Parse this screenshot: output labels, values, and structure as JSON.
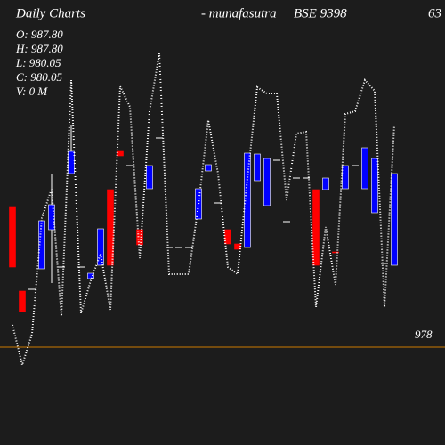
{
  "chart_data": {
    "type": "candlestick",
    "title": "Daily Charts",
    "source": "- munafasutra",
    "symbol": "BSE 9398",
    "corner_text": "63",
    "ohlc_labels": [
      "O: 987.80",
      "H: 987.80",
      "L: 980.05",
      "C: 980.05",
      "V: 0  M"
    ],
    "ylim": [
      972.5,
      997.5
    ],
    "up_color": "#0000ff",
    "down_color": "#ff0000",
    "level": 978,
    "level_color": "#cc7a00",
    "open": [
      985.85,
      981.15,
      981.25,
      982.4,
      984.6,
      982.5,
      987.75,
      982.5,
      981.85,
      982.6,
      986.85,
      989.0,
      988.2,
      984.6,
      986.9,
      989.75,
      983.6,
      983.6,
      983.6,
      985.2,
      987.9,
      986.1,
      984.6,
      983.8,
      983.6,
      987.35,
      985.95,
      988.5,
      985.05,
      987.5,
      987.5,
      986.85,
      986.85,
      983.35,
      986.9,
      988.2,
      986.9,
      985.55,
      982.7,
      982.6
    ],
    "high": [
      985.85,
      981.15,
      981.25,
      985.1,
      987.75,
      982.5,
      990.5,
      982.5,
      982.15,
      984.65,
      986.85,
      989.0,
      988.2,
      984.6,
      988.2,
      989.75,
      983.6,
      983.6,
      983.6,
      986.9,
      988.25,
      986.1,
      984.6,
      983.8,
      988.9,
      988.85,
      988.6,
      988.5,
      985.05,
      987.5,
      987.5,
      986.85,
      987.5,
      983.35,
      988.2,
      988.2,
      989.2,
      988.6,
      982.7,
      987.75
    ],
    "low": [
      982.5,
      980.0,
      981.25,
      982.4,
      981.6,
      982.5,
      987.75,
      982.5,
      981.85,
      982.6,
      982.6,
      988.75,
      988.2,
      983.75,
      986.9,
      989.75,
      983.6,
      983.6,
      983.6,
      985.2,
      987.9,
      986.1,
      983.8,
      983.5,
      983.6,
      987.35,
      985.95,
      988.5,
      985.05,
      987.5,
      987.5,
      982.6,
      986.85,
      983.3,
      986.9,
      988.2,
      986.9,
      985.55,
      982.7,
      982.6
    ],
    "close": [
      982.5,
      980.0,
      981.25,
      985.1,
      986.0,
      982.5,
      989.0,
      982.5,
      982.15,
      984.65,
      982.6,
      988.75,
      988.2,
      983.75,
      988.2,
      989.75,
      983.6,
      983.6,
      983.6,
      986.9,
      988.25,
      986.1,
      983.8,
      983.5,
      988.9,
      988.85,
      988.6,
      988.5,
      985.05,
      987.5,
      987.5,
      982.6,
      987.5,
      983.3,
      988.2,
      988.2,
      989.2,
      988.6,
      982.7,
      987.75
    ],
    "line": {
      "color": "#ffffff",
      "values": [
        979.25,
        977.0,
        978.75,
        985.25,
        986.9,
        979.75,
        993.0,
        979.9,
        981.75,
        983.25,
        980.1,
        992.65,
        991.5,
        983.0,
        991.25,
        994.5,
        982.1,
        982.1,
        982.1,
        986.0,
        990.75,
        987.75,
        982.5,
        982.1,
        987.5,
        992.6,
        992.25,
        992.25,
        986.25,
        990.0,
        990.1,
        980.25,
        984.75,
        981.5,
        991.1,
        991.25,
        993.0,
        992.4,
        980.25,
        990.5
      ]
    }
  }
}
